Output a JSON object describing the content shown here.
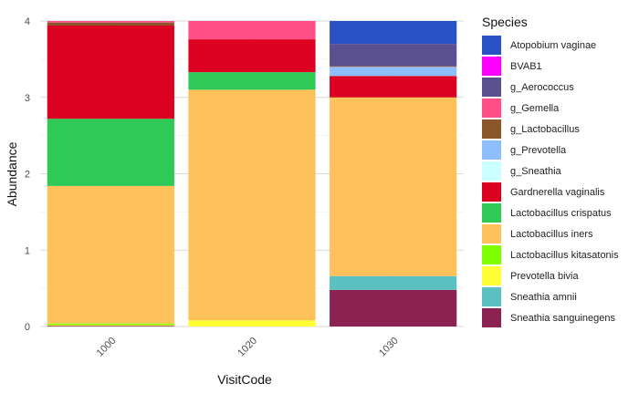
{
  "chart_data": {
    "type": "stacked-bar",
    "xlabel": "VisitCode",
    "ylabel": "Abundance",
    "categories": [
      "1000",
      "1020",
      "1030"
    ],
    "ylim": [
      0,
      4
    ],
    "yticks": [
      "0",
      "1",
      "2",
      "3",
      "4"
    ],
    "grid": true,
    "legend_title": "Species",
    "legend_position": "right",
    "series": [
      {
        "name": "Sneathia sanguinegens",
        "color": "#8B2252",
        "values": [
          0.01,
          0,
          0.48
        ]
      },
      {
        "name": "Sneathia amnii",
        "color": "#5BC0C0",
        "values": [
          0,
          0,
          0.18
        ]
      },
      {
        "name": "Prevotella bivia",
        "color": "#FFFF33",
        "values": [
          0.01,
          0.08,
          0
        ]
      },
      {
        "name": "Lactobacillus kitasatonis",
        "color": "#80FF00",
        "values": [
          0.02,
          0,
          0
        ]
      },
      {
        "name": "Lactobacillus iners",
        "color": "#FFC25A",
        "values": [
          1.8,
          3.02,
          2.34
        ]
      },
      {
        "name": "Lactobacillus crispatus",
        "color": "#2FC957",
        "values": [
          0.88,
          0.23,
          0
        ]
      },
      {
        "name": "Gardnerella vaginalis",
        "color": "#DC0021",
        "values": [
          1.22,
          0.43,
          0.28
        ]
      },
      {
        "name": "g_Sneathia",
        "color": "#CCFFFF",
        "values": [
          0,
          0,
          0
        ]
      },
      {
        "name": "g_Prevotella",
        "color": "#8FBEFF",
        "values": [
          0,
          0,
          0.12
        ]
      },
      {
        "name": "g_Lactobacillus",
        "color": "#8B572A",
        "values": [
          0.04,
          0,
          0.01
        ]
      },
      {
        "name": "g_Gemella",
        "color": "#FF4F86",
        "values": [
          0.02,
          0.24,
          0
        ]
      },
      {
        "name": "g_Aerococcus",
        "color": "#5A4F8F",
        "values": [
          0,
          0,
          0.29
        ]
      },
      {
        "name": "BVAB1",
        "color": "#FF00FF",
        "values": [
          0,
          0,
          0
        ]
      },
      {
        "name": "Atopobium vaginae",
        "color": "#2A52C7",
        "values": [
          0,
          0,
          0.3
        ]
      }
    ],
    "legend_order": [
      "Atopobium vaginae",
      "BVAB1",
      "g_Aerococcus",
      "g_Gemella",
      "g_Lactobacillus",
      "g_Prevotella",
      "g_Sneathia",
      "Gardnerella vaginalis",
      "Lactobacillus crispatus",
      "Lactobacillus iners",
      "Lactobacillus kitasatonis",
      "Prevotella bivia",
      "Sneathia amnii",
      "Sneathia sanguinegens"
    ]
  }
}
